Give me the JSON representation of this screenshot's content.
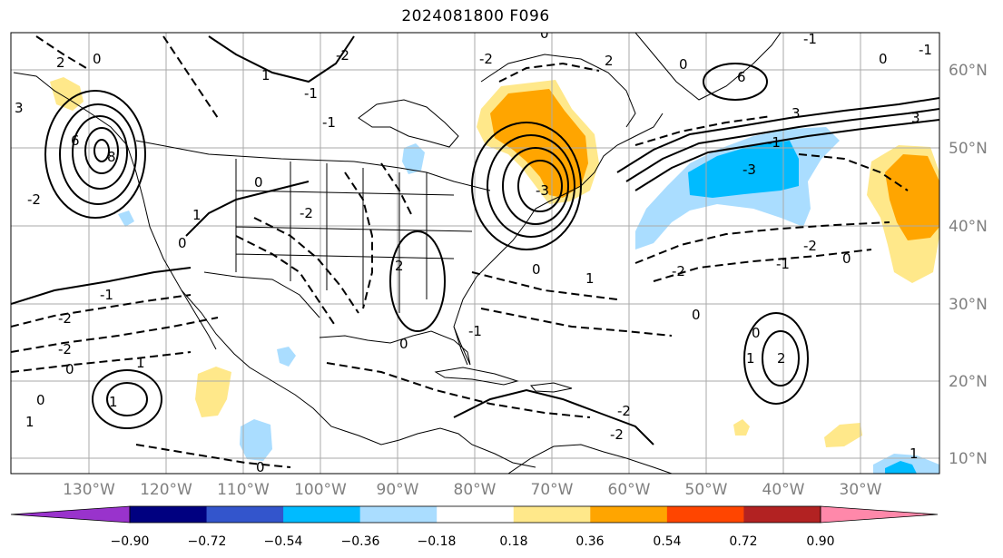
{
  "title": "2024081800 F096",
  "latitude_labels": [
    "60°N",
    "50°N",
    "40°N",
    "30°N",
    "20°N",
    "10°N"
  ],
  "longitude_labels": [
    "130°W",
    "120°W",
    "110°W",
    "100°W",
    "90°W",
    "80°W",
    "70°W",
    "60°W",
    "50°W",
    "40°W",
    "30°W"
  ],
  "colorbar": {
    "ticks": [
      "−0.90",
      "−0.72",
      "−0.54",
      "−0.36",
      "−0.18",
      "0.18",
      "0.36",
      "0.54",
      "0.72",
      "0.90"
    ],
    "colors": [
      "#9933cc",
      "#000080",
      "#3355cc",
      "#00bbff",
      "#aaddff",
      "#ffffff",
      "#ffe88a",
      "#ffa500",
      "#ff4500",
      "#b22222",
      "#ff88aa"
    ]
  },
  "contour_labels": [
    "2",
    "0",
    "1",
    "-2",
    "-1",
    "0",
    "-2",
    "2",
    "0",
    "-1",
    "0",
    "-1",
    "3",
    "6",
    "8",
    "-3",
    "-2",
    "-1",
    "0",
    "-2",
    "-2",
    "-1",
    "1",
    "-2",
    "0",
    "1",
    "0",
    "1",
    "0",
    "1",
    "2",
    "1",
    "0",
    "6",
    "-1",
    "3",
    "0",
    "1",
    "3",
    "-2",
    "-3",
    "-1",
    "-2",
    "-2",
    "0",
    "-2",
    "0",
    "1",
    "2",
    "0",
    "-1",
    "0"
  ],
  "icons": {
    "land": "coastline-outline",
    "grid": "graticule"
  }
}
